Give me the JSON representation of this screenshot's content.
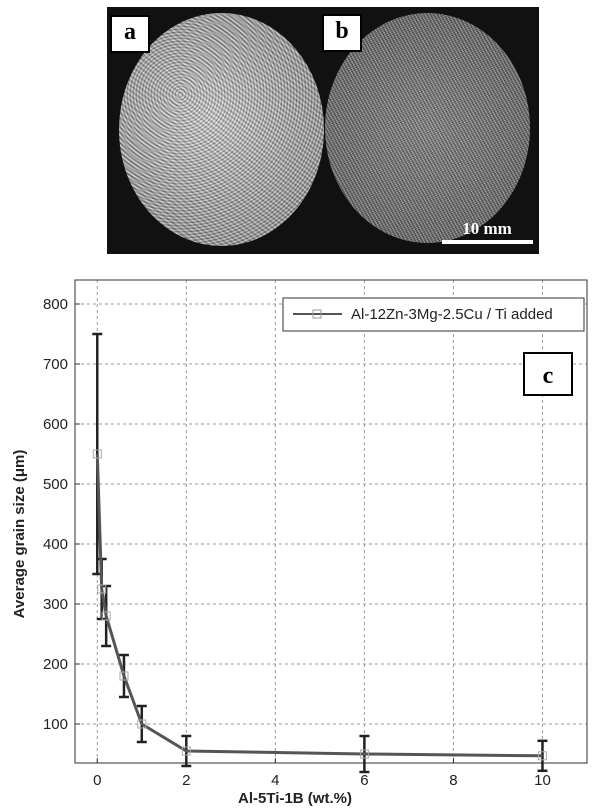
{
  "panels": {
    "a_label": "a",
    "b_label": "b",
    "c_label": "c",
    "scale_bar_text": "10 mm"
  },
  "chart_data": {
    "type": "line",
    "xlabel": "Al-5Ti-1B (wt.%)",
    "ylabel": "Average grain size (μm)",
    "xlim": [
      -0.5,
      11
    ],
    "ylim": [
      35,
      840
    ],
    "xticks": [
      0,
      2,
      4,
      6,
      8,
      10
    ],
    "yticks": [
      100,
      200,
      300,
      400,
      500,
      600,
      700,
      800
    ],
    "grid": true,
    "legend_position": "top-right",
    "series": [
      {
        "name": "Al-12Zn-3Mg-2.5Cu / Ti added",
        "color": "#555555",
        "marker": "square",
        "x": [
          0,
          0.1,
          0.2,
          0.6,
          1,
          2,
          6,
          10
        ],
        "y": [
          550,
          325,
          280,
          180,
          100,
          55,
          50,
          47
        ],
        "err_low": [
          200,
          50,
          50,
          35,
          30,
          25,
          30,
          25
        ],
        "err_high": [
          200,
          50,
          50,
          35,
          30,
          25,
          30,
          25
        ]
      }
    ]
  }
}
